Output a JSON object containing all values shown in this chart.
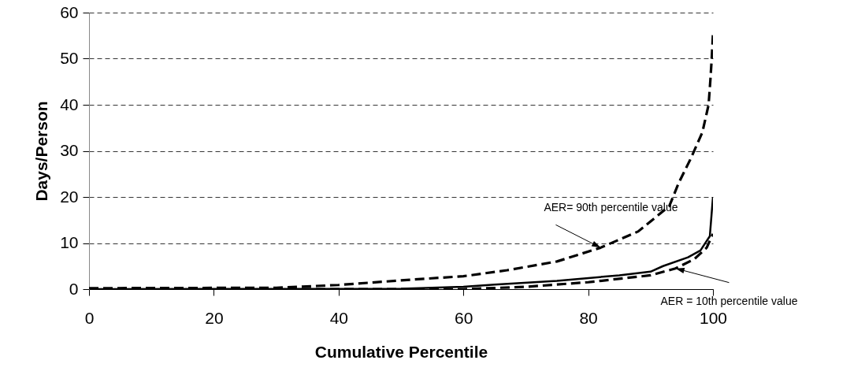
{
  "chart_data": {
    "type": "line",
    "xlabel": "Cumulative Percentile",
    "ylabel": "Days/Person",
    "xlim": [
      0,
      100
    ],
    "xticks": [
      0,
      20,
      40,
      60,
      80,
      100
    ],
    "ylim": [
      0,
      60
    ],
    "yticks": [
      0,
      10,
      20,
      30,
      40,
      50,
      60
    ],
    "grid": "y",
    "marker": "none",
    "series": [
      {
        "color": "#000000",
        "line_style": "dashed",
        "x": [
          0,
          30,
          40,
          50,
          60,
          67,
          75,
          82,
          88,
          93,
          94.5,
          96.5,
          98.3,
          99.3,
          99.6,
          99.8,
          100
        ],
        "values": [
          0.2,
          0.3,
          0.9,
          1.9,
          2.8,
          4.1,
          6,
          9,
          12.5,
          18,
          23,
          28.5,
          34,
          40,
          45.6,
          50,
          55.3
        ]
      },
      {
        "color": "#000000",
        "line_style": "solid",
        "x": [
          0,
          50,
          60,
          65,
          75,
          85,
          90,
          92,
          96,
          98,
          99.5,
          100
        ],
        "values": [
          0,
          0.1,
          0.5,
          1,
          1.8,
          3,
          3.8,
          5,
          6.9,
          8.4,
          11.5,
          20
        ]
      },
      {
        "color": "#000000",
        "line_style": "dashed",
        "x": [
          0,
          60,
          70,
          80,
          90,
          94,
          97,
          99,
          100
        ],
        "values": [
          0,
          0,
          0.5,
          1.5,
          3,
          4.5,
          6.5,
          9,
          12
        ]
      }
    ],
    "annotations": [
      {
        "text": "AER= 90th percentile value",
        "x": 82,
        "y": 9
      },
      {
        "text": "AER = 10th percentile value",
        "x": 94,
        "y": 4.5
      }
    ]
  }
}
